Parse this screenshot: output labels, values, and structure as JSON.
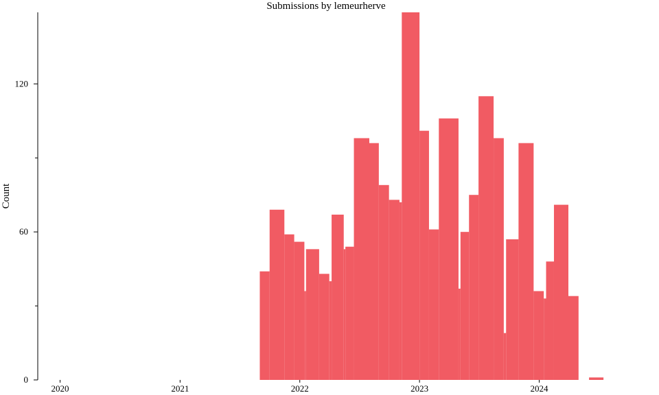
{
  "chart_data": {
    "type": "bar",
    "title": "Submissions by lemeurherve",
    "xlabel": "",
    "ylabel": "Count",
    "bar_color": "#f15b63",
    "ylim": [
      0,
      149
    ],
    "y_ticks_major": [
      0,
      60,
      120
    ],
    "y_ticks_minor": [
      30,
      90
    ],
    "x_range": [
      "2019-10-25",
      "2024-12-02"
    ],
    "x_ticks": [
      {
        "label": "2020",
        "date": "2020-01-01"
      },
      {
        "label": "2021",
        "date": "2021-01-01"
      },
      {
        "label": "2022",
        "date": "2022-01-01"
      },
      {
        "label": "2023",
        "date": "2023-01-01"
      },
      {
        "label": "2024",
        "date": "2024-01-01"
      }
    ],
    "bars": [
      {
        "start": "2021-09-01",
        "end": "2021-10-01",
        "value": 44
      },
      {
        "start": "2021-10-01",
        "end": "2021-11-15",
        "value": 69
      },
      {
        "start": "2021-11-15",
        "end": "2021-12-15",
        "value": 59
      },
      {
        "start": "2021-12-15",
        "end": "2022-01-15",
        "value": 56
      },
      {
        "start": "2022-01-15",
        "end": "2022-01-20",
        "value": 36
      },
      {
        "start": "2022-01-20",
        "end": "2022-03-01",
        "value": 53
      },
      {
        "start": "2022-03-01",
        "end": "2022-04-01",
        "value": 43
      },
      {
        "start": "2022-04-01",
        "end": "2022-04-08",
        "value": 40
      },
      {
        "start": "2022-04-08",
        "end": "2022-05-15",
        "value": 67
      },
      {
        "start": "2022-05-15",
        "end": "2022-05-20",
        "value": 53
      },
      {
        "start": "2022-05-20",
        "end": "2022-06-15",
        "value": 54
      },
      {
        "start": "2022-06-15",
        "end": "2022-08-01",
        "value": 98
      },
      {
        "start": "2022-08-01",
        "end": "2022-08-30",
        "value": 96
      },
      {
        "start": "2022-08-30",
        "end": "2022-09-30",
        "value": 79
      },
      {
        "start": "2022-09-30",
        "end": "2022-11-01",
        "value": 73
      },
      {
        "start": "2022-11-01",
        "end": "2022-11-08",
        "value": 72
      },
      {
        "start": "2022-11-08",
        "end": "2023-01-01",
        "value": 149
      },
      {
        "start": "2023-01-01",
        "end": "2023-01-30",
        "value": 101
      },
      {
        "start": "2023-01-30",
        "end": "2023-03-01",
        "value": 61
      },
      {
        "start": "2023-03-01",
        "end": "2023-04-30",
        "value": 106
      },
      {
        "start": "2023-04-30",
        "end": "2023-05-06",
        "value": 37
      },
      {
        "start": "2023-05-06",
        "end": "2023-06-01",
        "value": 60
      },
      {
        "start": "2023-06-01",
        "end": "2023-06-30",
        "value": 75
      },
      {
        "start": "2023-06-30",
        "end": "2023-08-15",
        "value": 115
      },
      {
        "start": "2023-08-15",
        "end": "2023-09-15",
        "value": 98
      },
      {
        "start": "2023-09-15",
        "end": "2023-09-22",
        "value": 19
      },
      {
        "start": "2023-09-22",
        "end": "2023-10-30",
        "value": 57
      },
      {
        "start": "2023-10-30",
        "end": "2023-12-15",
        "value": 96
      },
      {
        "start": "2023-12-15",
        "end": "2024-01-15",
        "value": 36
      },
      {
        "start": "2024-01-15",
        "end": "2024-01-22",
        "value": 33
      },
      {
        "start": "2024-01-22",
        "end": "2024-02-15",
        "value": 48
      },
      {
        "start": "2024-02-15",
        "end": "2024-03-30",
        "value": 71
      },
      {
        "start": "2024-03-30",
        "end": "2024-04-30",
        "value": 34
      },
      {
        "start": "2024-06-01",
        "end": "2024-07-15",
        "value": 1
      }
    ]
  }
}
